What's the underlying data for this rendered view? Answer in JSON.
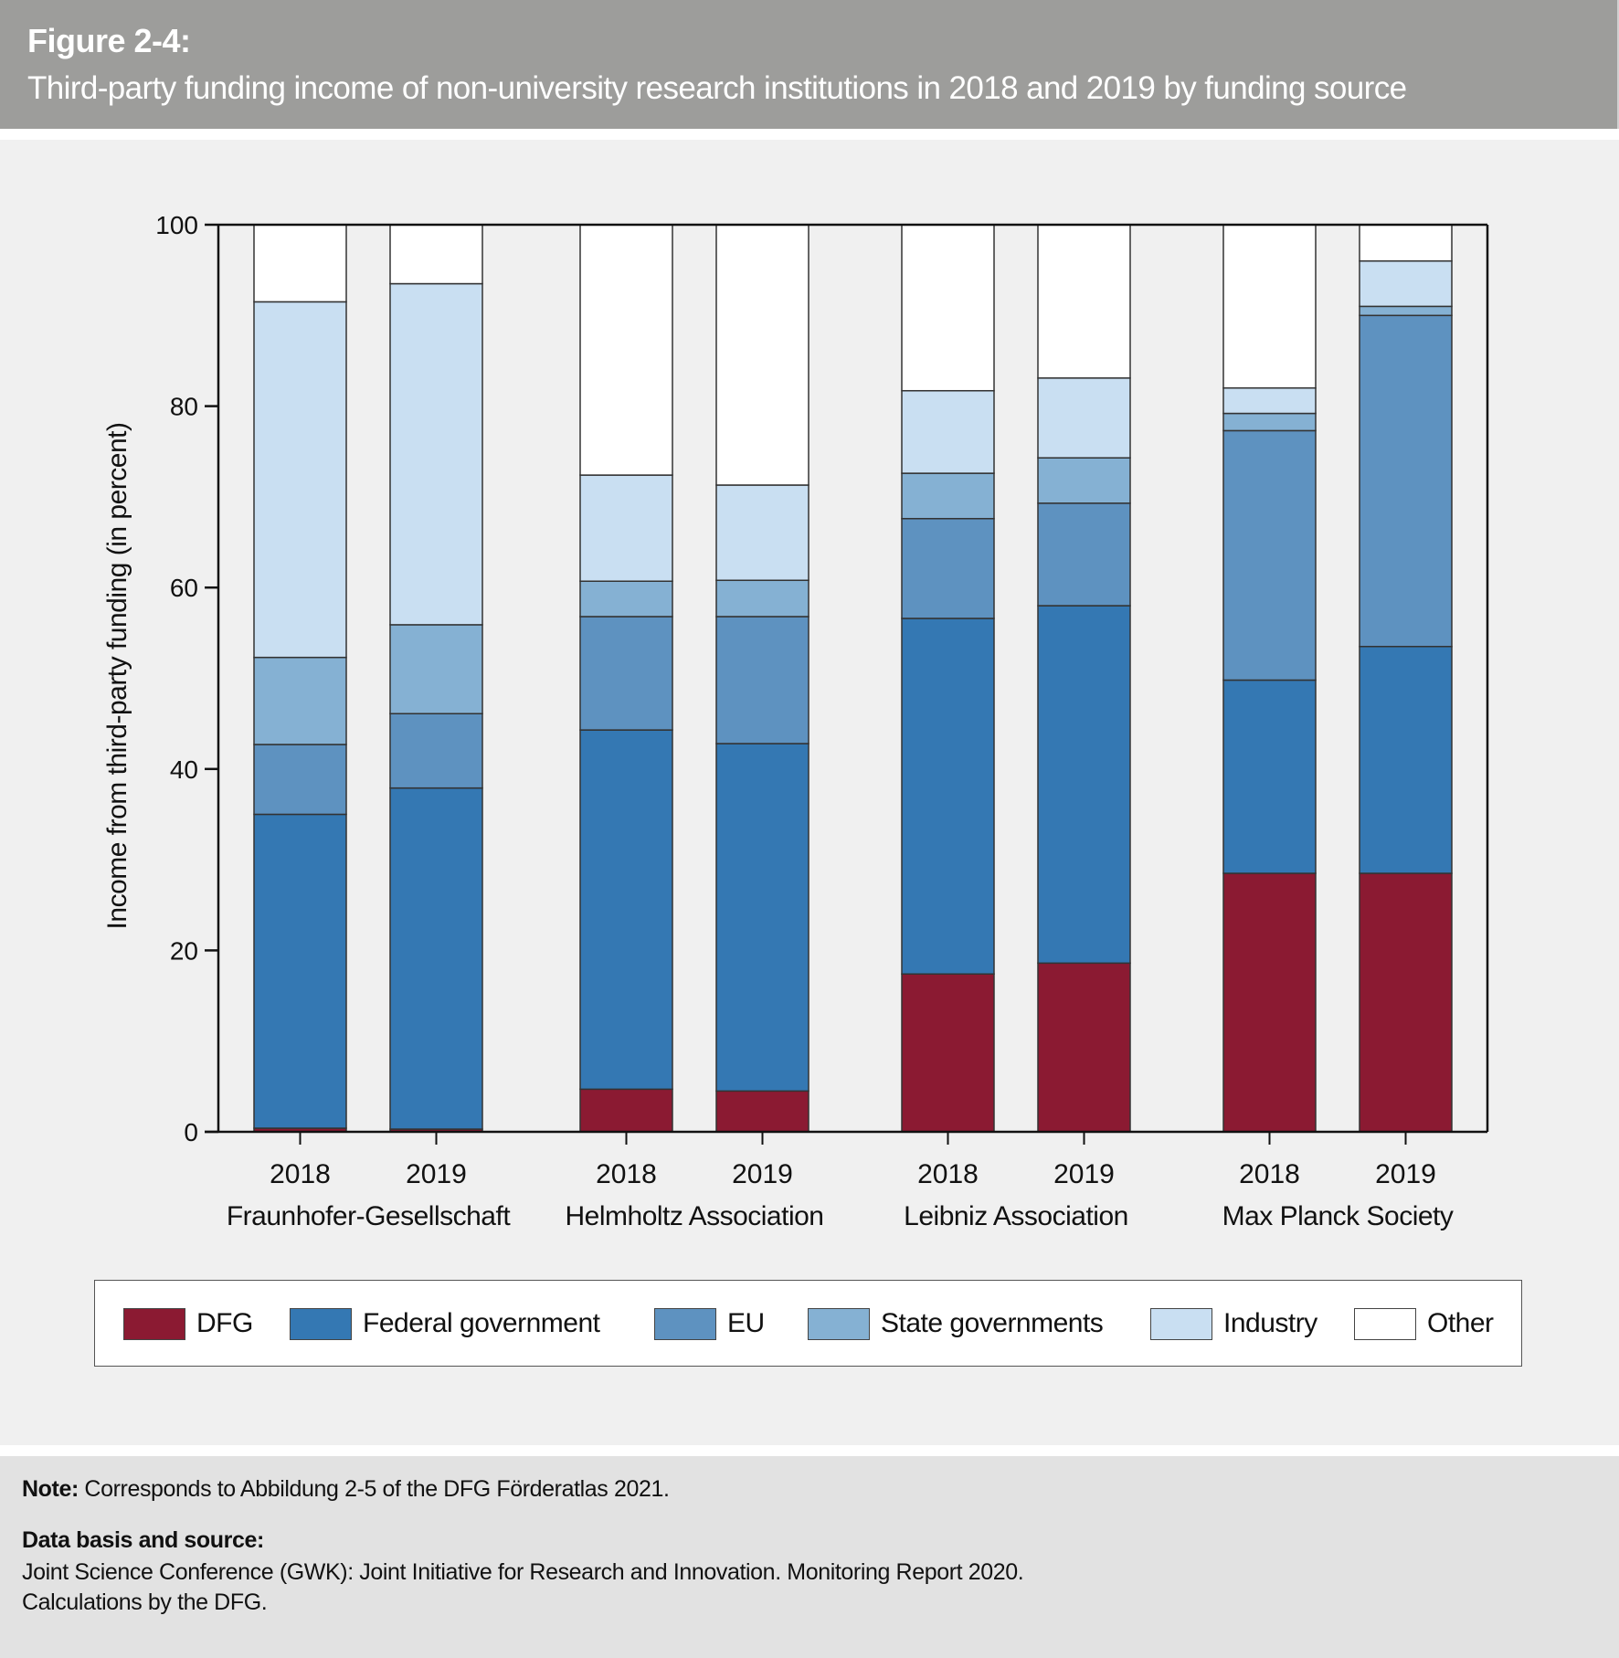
{
  "header": {
    "figure_label": "Figure 2-4:",
    "title": "Third-party funding income of non-university research institutions in 2018 and 2019 by funding source"
  },
  "chart_data": {
    "type": "bar",
    "stacked": true,
    "title": "Third-party funding income of non-university research institutions in 2018 and 2019 by funding source",
    "ylabel": "Income from third-party funding (in percent)",
    "xlabel": "",
    "ylim": [
      0,
      100
    ],
    "yticks": [
      0,
      20,
      40,
      60,
      80,
      100
    ],
    "grid": false,
    "legend_position": "bottom",
    "groups": [
      "Fraunhofer-Gesellschaft",
      "Helmholtz Association",
      "Leibniz Association",
      "Max Planck Society"
    ],
    "categories": [
      {
        "group": "Fraunhofer-Gesellschaft",
        "year": "2018"
      },
      {
        "group": "Fraunhofer-Gesellschaft",
        "year": "2019"
      },
      {
        "group": "Helmholtz Association",
        "year": "2018"
      },
      {
        "group": "Helmholtz Association",
        "year": "2019"
      },
      {
        "group": "Leibniz Association",
        "year": "2018"
      },
      {
        "group": "Leibniz Association",
        "year": "2019"
      },
      {
        "group": "Max Planck Society",
        "year": "2018"
      },
      {
        "group": "Max Planck Society",
        "year": "2019"
      }
    ],
    "series": [
      {
        "name": "DFG",
        "color": "#8b1a32",
        "values": [
          0.4,
          0.3,
          4.7,
          4.5,
          17.4,
          18.6,
          28.5,
          28.5
        ]
      },
      {
        "name": "Federal government",
        "color": "#3478b3",
        "values": [
          34.6,
          37.6,
          39.6,
          38.3,
          39.2,
          39.4,
          21.3,
          25.0
        ]
      },
      {
        "name": "EU",
        "color": "#5e92c0",
        "values": [
          7.7,
          8.2,
          12.5,
          14.0,
          11.0,
          11.3,
          27.5,
          36.5
        ]
      },
      {
        "name": "State governments",
        "color": "#85b1d3",
        "values": [
          9.6,
          9.8,
          3.9,
          4.0,
          5.0,
          5.0,
          1.9,
          1.0
        ]
      },
      {
        "name": "Industry",
        "color": "#c9dff2",
        "values": [
          39.2,
          37.6,
          11.7,
          10.5,
          9.1,
          8.8,
          2.8,
          5.0
        ]
      },
      {
        "name": "Other",
        "color": "#ffffff",
        "values": [
          8.5,
          6.5,
          27.6,
          28.7,
          18.3,
          16.9,
          18.0,
          4.0
        ]
      }
    ]
  },
  "footer": {
    "note_label": "Note:",
    "note_text": " Corresponds to Abbildung 2-5 of the DFG Förderatlas 2021.",
    "source_label": "Data basis and source:",
    "source_line1": "Joint Science Conference (GWK): Joint Initiative for Research and Innovation. Monitoring Report 2020.",
    "source_line2": "Calculations by the DFG."
  }
}
